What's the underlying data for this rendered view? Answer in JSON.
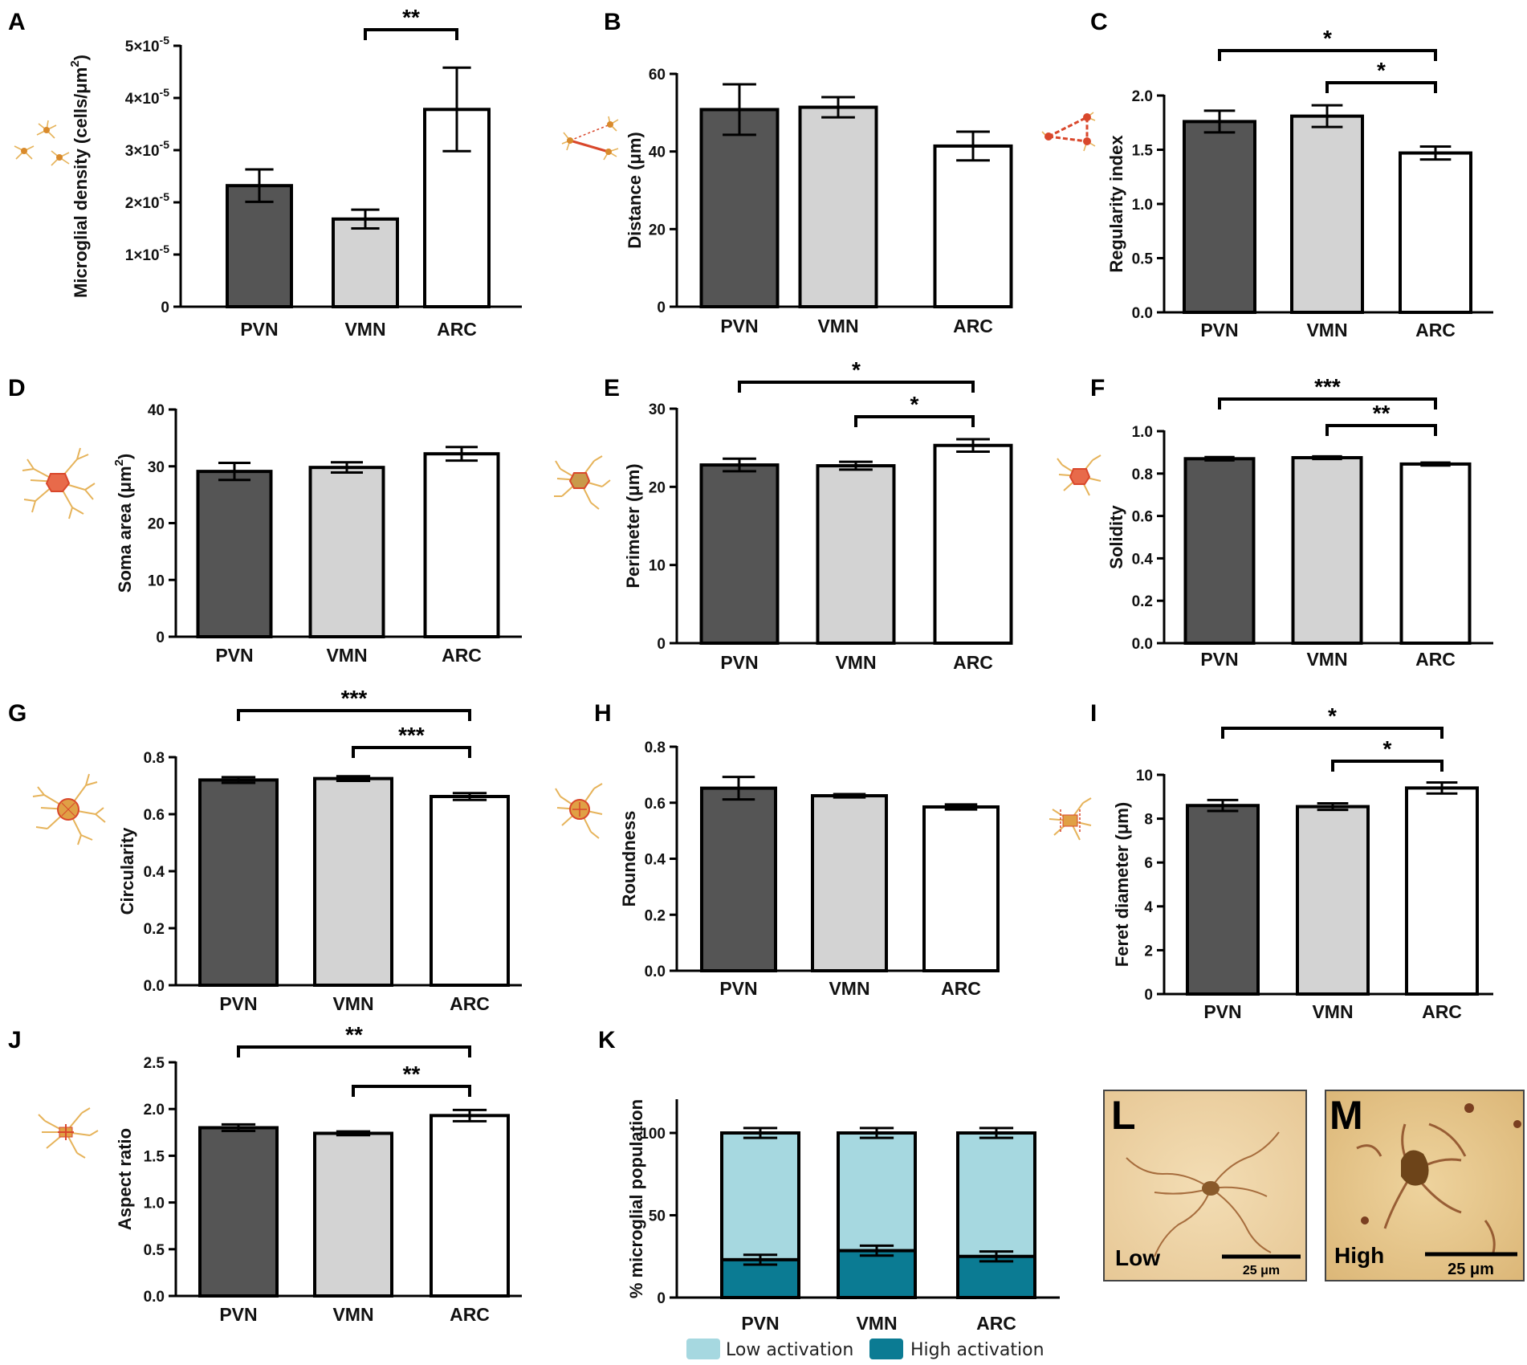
{
  "figure": {
    "colors": {
      "PVN": "#555555",
      "VMN": "#d3d3d3",
      "ARC": "#ffffff",
      "low_activation": "#a6d8e0",
      "high_activation": "#0b7b93",
      "microglia_icon": "#e6b35a",
      "soma_icon": "#d9472b"
    }
  },
  "chart_data": [
    {
      "panel": "A",
      "type": "bar",
      "title": "",
      "categories": [
        "PVN",
        "VMN",
        "ARC"
      ],
      "values": [
        2.32e-05,
        1.68e-05,
        3.78e-05
      ],
      "errors": [
        3.1e-06,
        1.8e-06,
        8e-06
      ],
      "ylim": [
        0,
        5e-05
      ],
      "yticks": [
        0,
        1e-05,
        2e-05,
        3e-05,
        4e-05,
        5e-05
      ],
      "ytick_labels": [
        {
          "base": "0",
          "exp": ""
        },
        {
          "base": "1×10",
          "exp": "-5"
        },
        {
          "base": "2×10",
          "exp": "-5"
        },
        {
          "base": "3×10",
          "exp": "-5"
        },
        {
          "base": "4×10",
          "exp": "-5"
        },
        {
          "base": "5×10",
          "exp": "-5"
        }
      ],
      "ylabel": {
        "text": "Microglial density (cells/μm",
        "sup": "2",
        "end": ")"
      },
      "xlabel": "",
      "significance": [
        {
          "from": 1,
          "to": 2,
          "label": "**"
        }
      ]
    },
    {
      "panel": "B",
      "type": "bar",
      "title": "",
      "categories": [
        "PVN",
        "VMN",
        "ARC"
      ],
      "values": [
        50.8,
        51.4,
        41.4
      ],
      "errors": [
        6.5,
        2.6,
        3.7
      ],
      "ylim": [
        0,
        60
      ],
      "yticks": [
        0,
        20,
        40,
        60
      ],
      "ytick_labels": [
        "0",
        "20",
        "40",
        "60"
      ],
      "ylabel": {
        "text": "Distance (μm)",
        "sup": "",
        "end": ""
      },
      "xlabel": "",
      "significance": []
    },
    {
      "panel": "C",
      "type": "bar",
      "title": "",
      "categories": [
        "PVN",
        "VMN",
        "ARC"
      ],
      "values": [
        1.76,
        1.81,
        1.47
      ],
      "errors": [
        0.1,
        0.1,
        0.06
      ],
      "ylim": [
        0,
        2.0
      ],
      "yticks": [
        0,
        0.5,
        1.0,
        1.5,
        2.0
      ],
      "ytick_labels": [
        "0.0",
        "0.5",
        "1.0",
        "1.5",
        "2.0"
      ],
      "ylabel": {
        "text": "Regularity index",
        "sup": "",
        "end": ""
      },
      "xlabel": "",
      "significance": [
        {
          "from": 0,
          "to": 2,
          "label": "*"
        },
        {
          "from": 1,
          "to": 2,
          "label": "*"
        }
      ]
    },
    {
      "panel": "D",
      "type": "bar",
      "title": "",
      "categories": [
        "PVN",
        "VMN",
        "ARC"
      ],
      "values": [
        29.1,
        29.8,
        32.2
      ],
      "errors": [
        1.5,
        0.9,
        1.2
      ],
      "ylim": [
        0,
        40
      ],
      "yticks": [
        0,
        10,
        20,
        30,
        40
      ],
      "ytick_labels": [
        "0",
        "10",
        "20",
        "30",
        "40"
      ],
      "ylabel": {
        "text": "Soma area (μm",
        "sup": "2",
        "end": ")"
      },
      "xlabel": "",
      "significance": []
    },
    {
      "panel": "E",
      "type": "bar",
      "title": "",
      "categories": [
        "PVN",
        "VMN",
        "ARC"
      ],
      "values": [
        22.8,
        22.7,
        25.3
      ],
      "errors": [
        0.8,
        0.5,
        0.8
      ],
      "ylim": [
        0,
        30
      ],
      "yticks": [
        0,
        10,
        20,
        30
      ],
      "ytick_labels": [
        "0",
        "10",
        "20",
        "30"
      ],
      "ylabel": {
        "text": "Perimeter (μm)",
        "sup": "",
        "end": ""
      },
      "xlabel": "",
      "significance": [
        {
          "from": 0,
          "to": 2,
          "label": "*"
        },
        {
          "from": 1,
          "to": 2,
          "label": "*"
        }
      ]
    },
    {
      "panel": "F",
      "type": "bar",
      "title": "",
      "categories": [
        "PVN",
        "VMN",
        "ARC"
      ],
      "values": [
        0.87,
        0.875,
        0.845
      ],
      "errors": [
        0.008,
        0.006,
        0.007
      ],
      "ylim": [
        0,
        1.0
      ],
      "yticks": [
        0,
        0.2,
        0.4,
        0.6,
        0.8,
        1.0
      ],
      "ytick_labels": [
        "0.0",
        "0.2",
        "0.4",
        "0.6",
        "0.8",
        "1.0"
      ],
      "ylabel": {
        "text": "Solidity",
        "sup": "",
        "end": ""
      },
      "xlabel": "",
      "significance": [
        {
          "from": 0,
          "to": 2,
          "label": "***"
        },
        {
          "from": 1,
          "to": 2,
          "label": "**"
        }
      ]
    },
    {
      "panel": "G",
      "type": "bar",
      "title": "",
      "categories": [
        "PVN",
        "VMN",
        "ARC"
      ],
      "values": [
        0.72,
        0.725,
        0.662
      ],
      "errors": [
        0.01,
        0.008,
        0.012
      ],
      "ylim": [
        0,
        0.8
      ],
      "yticks": [
        0,
        0.2,
        0.4,
        0.6,
        0.8
      ],
      "ytick_labels": [
        "0.0",
        "0.2",
        "0.4",
        "0.6",
        "0.8"
      ],
      "ylabel": {
        "text": "Circularity",
        "sup": "",
        "end": ""
      },
      "xlabel": "",
      "significance": [
        {
          "from": 0,
          "to": 2,
          "label": "***"
        },
        {
          "from": 1,
          "to": 2,
          "label": "***"
        }
      ]
    },
    {
      "panel": "H",
      "type": "bar",
      "title": "",
      "categories": [
        "PVN",
        "VMN",
        "ARC"
      ],
      "values": [
        0.652,
        0.625,
        0.585
      ],
      "errors": [
        0.04,
        0.006,
        0.009
      ],
      "ylim": [
        0,
        0.8
      ],
      "yticks": [
        0,
        0.2,
        0.4,
        0.6,
        0.8
      ],
      "ytick_labels": [
        "0.0",
        "0.2",
        "0.4",
        "0.6",
        "0.8"
      ],
      "ylabel": {
        "text": "Roundness",
        "sup": "",
        "end": ""
      },
      "xlabel": "",
      "significance": []
    },
    {
      "panel": "I",
      "type": "bar",
      "title": "",
      "categories": [
        "PVN",
        "VMN",
        "ARC"
      ],
      "values": [
        8.6,
        8.55,
        9.4
      ],
      "errors": [
        0.25,
        0.15,
        0.25
      ],
      "ylim": [
        0,
        10
      ],
      "yticks": [
        0,
        2,
        4,
        6,
        8,
        10
      ],
      "ytick_labels": [
        "0",
        "2",
        "4",
        "6",
        "8",
        "10"
      ],
      "ylabel": {
        "text": "Feret diameter (μm)",
        "sup": "",
        "end": ""
      },
      "xlabel": "",
      "significance": [
        {
          "from": 0,
          "to": 2,
          "label": "*"
        },
        {
          "from": 1,
          "to": 2,
          "label": "*"
        }
      ]
    },
    {
      "panel": "J",
      "type": "bar",
      "title": "",
      "categories": [
        "PVN",
        "VMN",
        "ARC"
      ],
      "values": [
        1.8,
        1.74,
        1.93
      ],
      "errors": [
        0.035,
        0.02,
        0.06
      ],
      "ylim": [
        0,
        2.5
      ],
      "yticks": [
        0,
        0.5,
        1.0,
        1.5,
        2.0,
        2.5
      ],
      "ytick_labels": [
        "0.0",
        "0.5",
        "1.0",
        "1.5",
        "2.0",
        "2.5"
      ],
      "ylabel": {
        "text": "Aspect ratio",
        "sup": "",
        "end": ""
      },
      "xlabel": "",
      "significance": [
        {
          "from": 0,
          "to": 2,
          "label": "**"
        },
        {
          "from": 1,
          "to": 2,
          "label": "**"
        }
      ]
    },
    {
      "panel": "K",
      "type": "stacked_bar",
      "title": "",
      "categories": [
        "PVN",
        "VMN",
        "ARC"
      ],
      "series": [
        {
          "name": "High activation",
          "values": [
            23,
            28.5,
            25
          ],
          "errors": [
            3,
            3,
            3
          ]
        },
        {
          "name": "Low activation",
          "values": [
            77,
            71.5,
            75
          ],
          "errors": [
            3,
            3,
            3
          ]
        }
      ],
      "ylim": [
        0,
        120
      ],
      "yticks": [
        0,
        50,
        100
      ],
      "ytick_labels": [
        "0",
        "50",
        "100"
      ],
      "ylabel": {
        "text": "% microglial population",
        "sup": "",
        "end": ""
      },
      "xlabel": "",
      "legend": [
        "Low activation",
        "High activation"
      ],
      "significance": []
    }
  ],
  "photos": [
    {
      "panel": "L",
      "caption": "Low",
      "scale": "25 μm"
    },
    {
      "panel": "M",
      "caption": "High",
      "scale": "25 μm"
    }
  ]
}
